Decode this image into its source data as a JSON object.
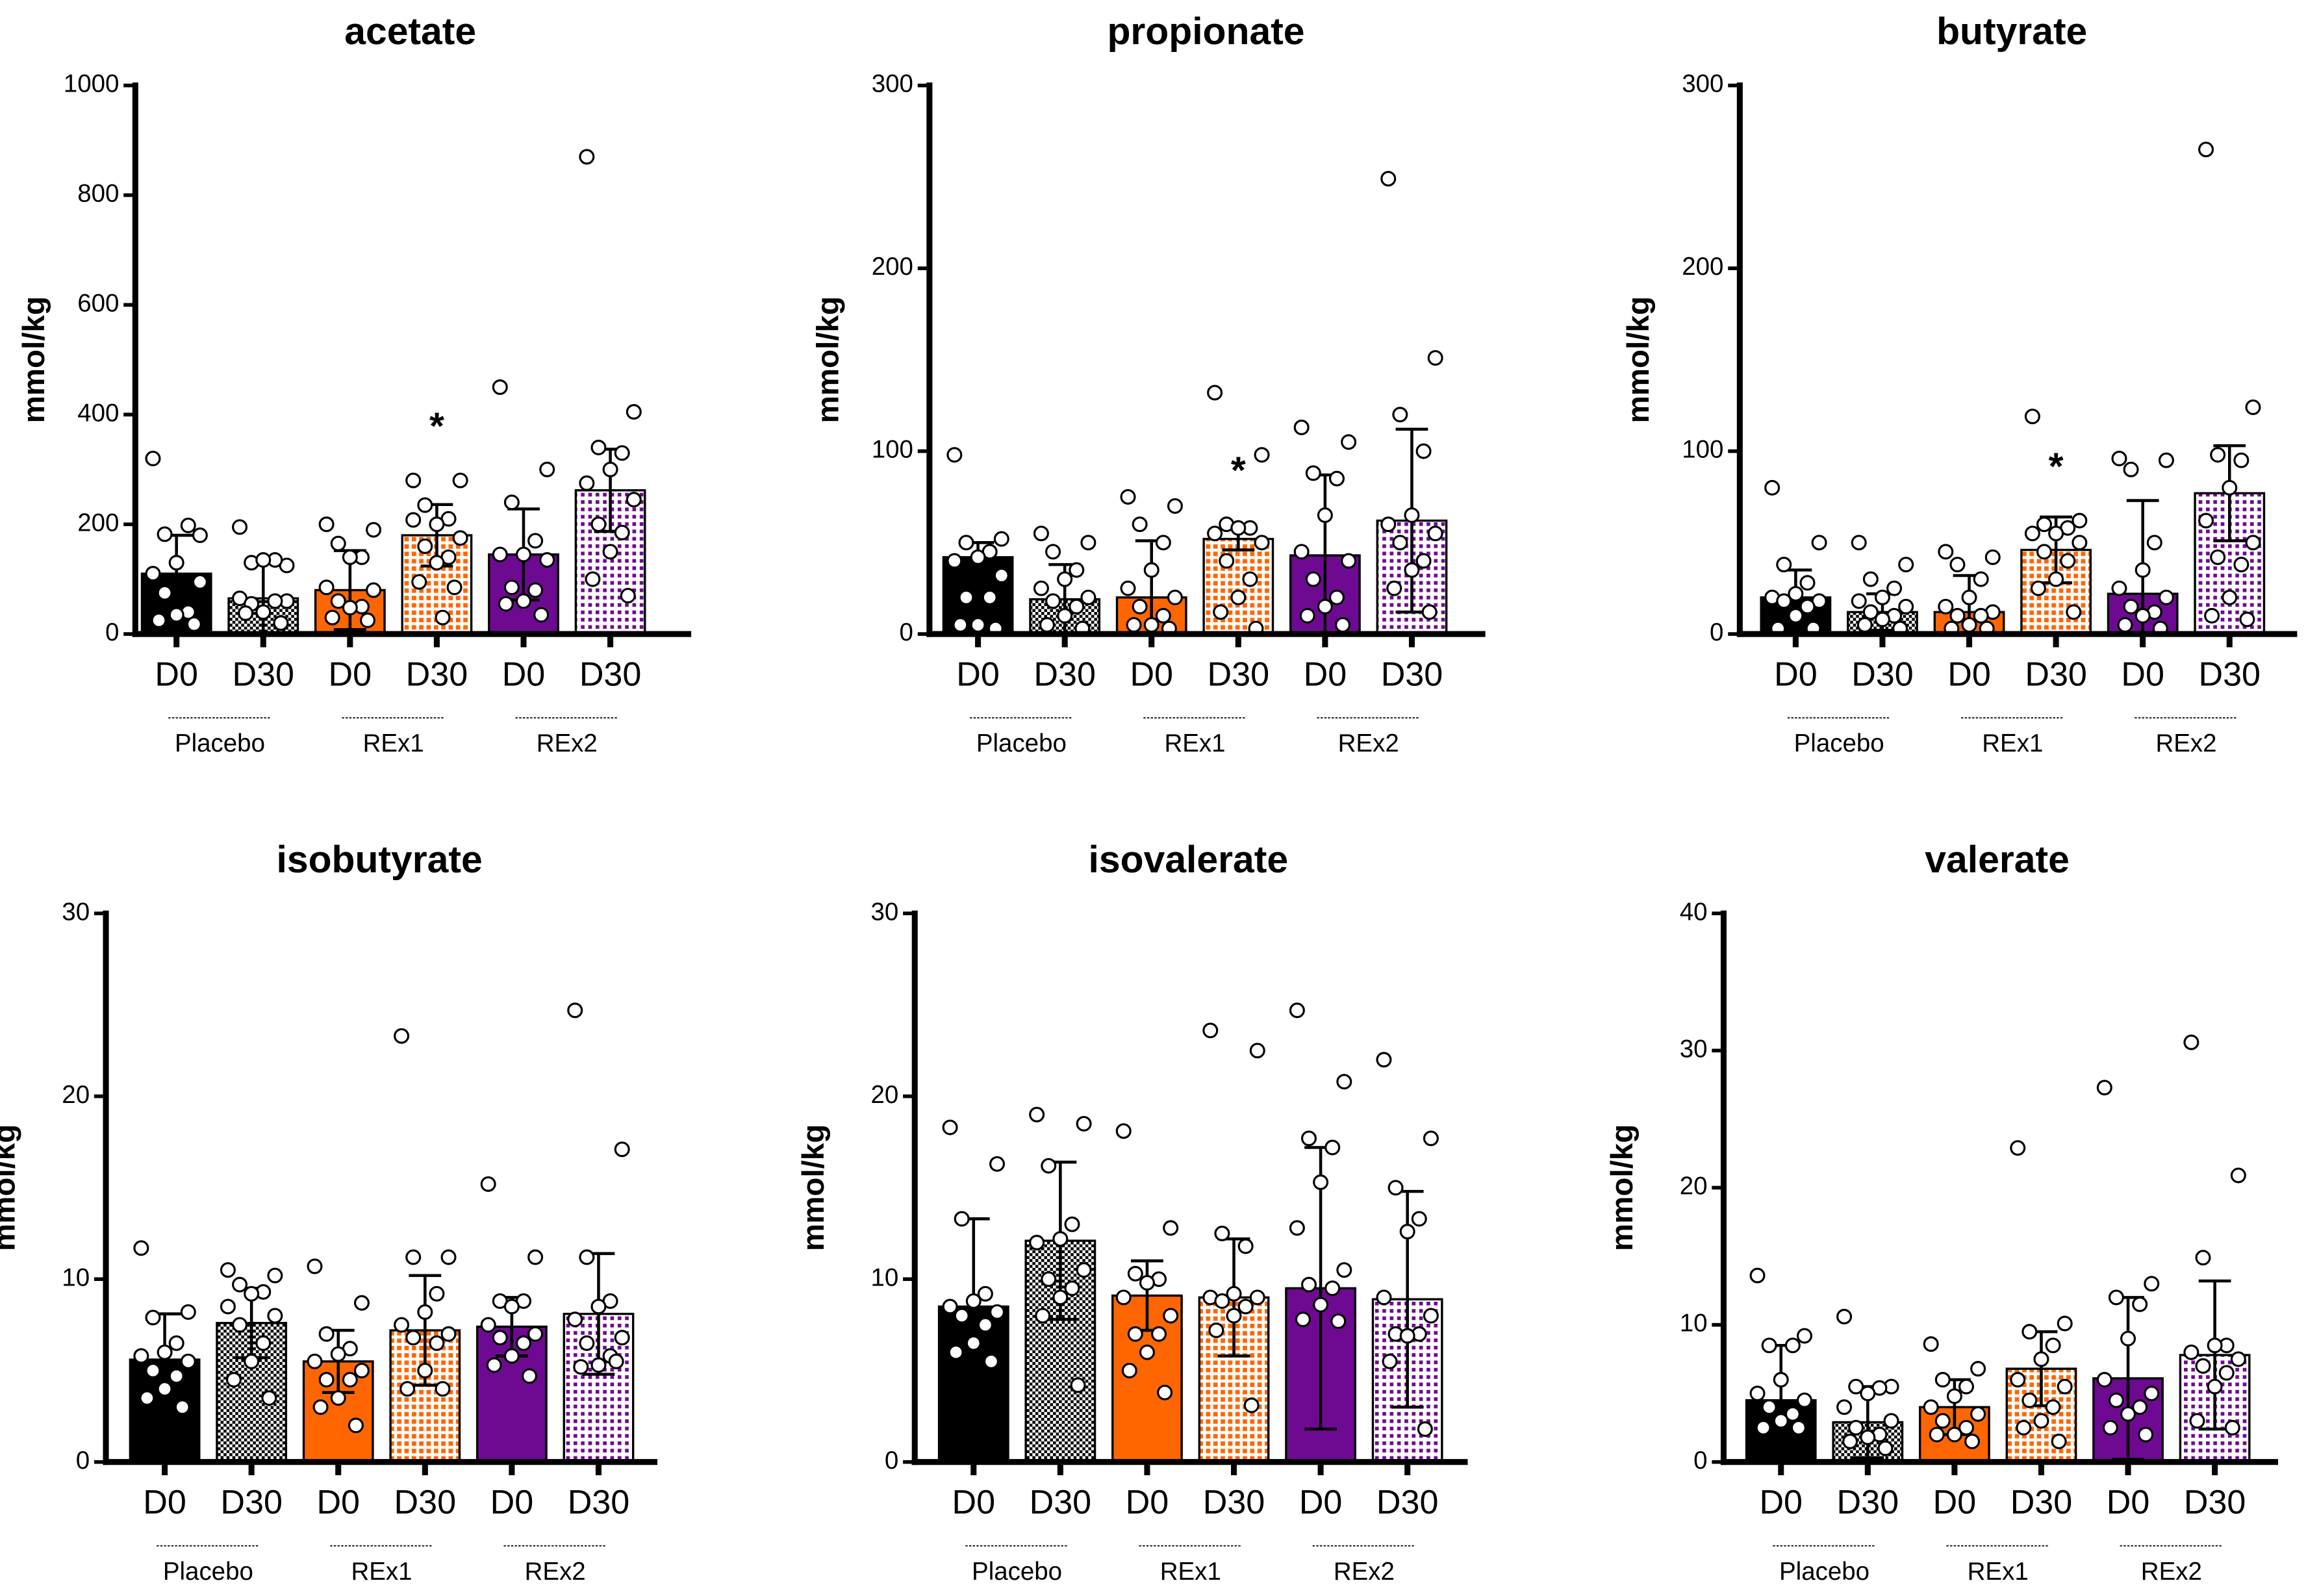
{
  "chart_data": [
    {
      "type": "bar",
      "title": "acetate",
      "ylabel": "mmol/kg",
      "ylim": [
        0,
        1000
      ],
      "yticks": [
        0,
        200,
        400,
        600,
        800,
        1000
      ],
      "categories": [
        "D0",
        "D30",
        "D0",
        "D30",
        "D0",
        "D30"
      ],
      "groups": [
        "Placebo",
        "REx1",
        "REx2"
      ],
      "means": [
        110,
        65,
        80,
        180,
        145,
        262
      ],
      "sd": [
        70,
        70,
        72,
        56,
        83,
        75
      ],
      "significance": [
        "",
        "",
        "",
        "*",
        "",
        ""
      ],
      "points": [
        [
          320,
          180,
          182,
          198,
          130,
          110,
          95,
          75,
          40,
          35,
          25,
          18
        ],
        [
          195,
          125,
          130,
          135,
          135,
          65,
          60,
          55,
          60,
          40,
          38,
          20
        ],
        [
          200,
          190,
          165,
          140,
          140,
          85,
          80,
          60,
          50,
          48,
          30,
          25
        ],
        [
          280,
          280,
          235,
          210,
          200,
          208,
          175,
          160,
          140,
          130,
          95,
          85,
          30
        ],
        [
          450,
          300,
          240,
          170,
          145,
          145,
          135,
          85,
          80,
          60,
          55,
          35
        ],
        [
          870,
          405,
          340,
          330,
          300,
          275,
          245,
          200,
          185,
          150,
          100,
          70
        ]
      ]
    },
    {
      "type": "bar",
      "title": "propionate",
      "ylabel": "mmol/kg",
      "ylim": [
        0,
        300
      ],
      "yticks": [
        0,
        100,
        200,
        300
      ],
      "categories": [
        "D0",
        "D30",
        "D0",
        "D30",
        "D0",
        "D30"
      ],
      "groups": [
        "Placebo",
        "REx1",
        "REx2"
      ],
      "means": [
        42,
        19,
        20,
        52,
        43,
        62
      ],
      "sd": [
        8,
        19,
        31,
        6,
        44,
        50
      ],
      "significance": [
        "",
        "",
        "",
        "*",
        "",
        ""
      ],
      "points": [
        [
          98,
          52,
          50,
          45,
          42,
          40,
          32,
          20,
          20,
          5,
          5,
          3
        ],
        [
          55,
          50,
          45,
          35,
          30,
          25,
          20,
          18,
          15,
          10,
          5,
          3
        ],
        [
          75,
          70,
          60,
          50,
          35,
          25,
          20,
          15,
          10,
          5,
          5,
          3
        ],
        [
          132,
          98,
          60,
          58,
          58,
          55,
          50,
          40,
          30,
          20,
          12,
          3
        ],
        [
          113,
          105,
          88,
          85,
          65,
          45,
          40,
          30,
          20,
          15,
          10,
          5
        ],
        [
          249,
          151,
          120,
          100,
          65,
          60,
          55,
          50,
          40,
          35,
          25,
          12
        ]
      ]
    },
    {
      "type": "bar",
      "title": "butyrate",
      "ylabel": "mmol/kg",
      "ylim": [
        0,
        300
      ],
      "yticks": [
        0,
        100,
        200,
        300
      ],
      "categories": [
        "D0",
        "D30",
        "D0",
        "D30",
        "D0",
        "D30"
      ],
      "groups": [
        "Placebo",
        "REx1",
        "REx2"
      ],
      "means": [
        20,
        12,
        12,
        46,
        22,
        77
      ],
      "sd": [
        15,
        10,
        20,
        18,
        51,
        26
      ],
      "significance": [
        "",
        "",
        "",
        "*",
        "",
        ""
      ],
      "points": [
        [
          80,
          50,
          38,
          28,
          22,
          20,
          18,
          18,
          15,
          10,
          3,
          3
        ],
        [
          50,
          38,
          30,
          25,
          20,
          18,
          15,
          12,
          10,
          8,
          5,
          3
        ],
        [
          45,
          42,
          38,
          30,
          20,
          15,
          12,
          10,
          10,
          5,
          3,
          3
        ],
        [
          119,
          62,
          60,
          58,
          55,
          55,
          50,
          45,
          40,
          30,
          25,
          12
        ],
        [
          96,
          95,
          90,
          50,
          35,
          25,
          20,
          15,
          12,
          10,
          5,
          3
        ],
        [
          265,
          124,
          98,
          95,
          80,
          62,
          50,
          42,
          38,
          20,
          10,
          8
        ]
      ]
    },
    {
      "type": "bar",
      "title": "isobutyrate",
      "ylabel": "mmol/kg",
      "ylim": [
        0,
        30
      ],
      "yticks": [
        0,
        10,
        20,
        30
      ],
      "categories": [
        "D0",
        "D30",
        "D0",
        "D30",
        "D0",
        "D30"
      ],
      "groups": [
        "Placebo",
        "REx1",
        "REx2"
      ],
      "means": [
        5.6,
        7.6,
        5.5,
        7.2,
        7.4,
        8.1
      ],
      "sd": [
        2.5,
        1.9,
        1.7,
        3.0,
        1.6,
        3.3
      ],
      "significance": [
        "",
        "",
        "",
        "",
        "",
        ""
      ],
      "points": [
        [
          11.7,
          8.2,
          7.9,
          6.5,
          6,
          5.8,
          5.5,
          5,
          4.7,
          4,
          3.5,
          3
        ],
        [
          10.5,
          10.2,
          9.7,
          9.3,
          9.2,
          8.5,
          8,
          7.5,
          6.5,
          5.5,
          4.5,
          3.5
        ],
        [
          10.7,
          8.7,
          7,
          6.2,
          5.9,
          5.5,
          5,
          4.5,
          4.5,
          3.5,
          3,
          2
        ],
        [
          23.3,
          11.2,
          11.2,
          9.2,
          8.2,
          7.5,
          7,
          6.8,
          6.5,
          5,
          4,
          4
        ],
        [
          15.2,
          11.2,
          8.8,
          8.8,
          8.5,
          7.5,
          7,
          6.8,
          6.5,
          5.8,
          5.3,
          4.7
        ],
        [
          24.7,
          17.1,
          11.2,
          8.8,
          8.5,
          7.8,
          6.8,
          6.5,
          5.8,
          5.3,
          5.2,
          5.5
        ]
      ]
    },
    {
      "type": "bar",
      "title": "isovalerate",
      "ylabel": "mmol/kg",
      "ylim": [
        0,
        30
      ],
      "yticks": [
        0,
        10,
        20,
        30
      ],
      "categories": [
        "D0",
        "D30",
        "D0",
        "D30",
        "D0",
        "D30"
      ],
      "groups": [
        "Placebo",
        "REx1",
        "REx2"
      ],
      "means": [
        8.5,
        12.1,
        9.1,
        9.0,
        9.5,
        8.9
      ],
      "sd": [
        4.8,
        4.3,
        1.9,
        3.2,
        7.7,
        5.9
      ],
      "significance": [
        "",
        "",
        "",
        "",
        "",
        ""
      ],
      "points": [
        [
          18.3,
          16.3,
          13.3,
          9.2,
          8.8,
          8.5,
          8.2,
          8,
          7.5,
          6.5,
          6,
          5.5
        ],
        [
          19,
          18.5,
          16.2,
          13,
          12.2,
          12,
          10.5,
          10,
          9.5,
          9,
          8,
          4.2
        ],
        [
          18.1,
          12.8,
          10.3,
          10,
          9.8,
          9,
          8,
          7,
          7,
          6,
          5,
          3.8
        ],
        [
          23.6,
          22.5,
          12.5,
          11.8,
          9.2,
          9,
          9,
          8.8,
          8.5,
          8,
          7.2,
          3.1
        ],
        [
          24.7,
          20.8,
          17.7,
          17.2,
          15.3,
          12.8,
          10.5,
          9.7,
          9.5,
          8.6,
          7.8,
          7.7
        ],
        [
          22,
          17.7,
          15,
          13.3,
          12.6,
          9,
          8,
          7,
          7,
          6.9,
          5.5,
          1.8
        ]
      ]
    },
    {
      "type": "bar",
      "title": "valerate",
      "ylabel": "mmol/kg",
      "ylim": [
        0,
        40
      ],
      "yticks": [
        0,
        10,
        20,
        30,
        40
      ],
      "categories": [
        "D0",
        "D30",
        "D0",
        "D30",
        "D0",
        "D30"
      ],
      "groups": [
        "Placebo",
        "REx1",
        "REx2"
      ],
      "means": [
        4.5,
        2.9,
        4.0,
        6.8,
        6.1,
        7.8
      ],
      "sd": [
        4.0,
        2.6,
        2.0,
        2.7,
        5.9,
        5.4
      ],
      "significance": [
        "",
        "",
        "",
        "",
        "",
        ""
      ],
      "points": [
        [
          13.6,
          9.2,
          8.5,
          8.5,
          6,
          5,
          4.5,
          4,
          3.5,
          3,
          2.5,
          2.5
        ],
        [
          10.6,
          5.5,
          5.5,
          5.4,
          5,
          4,
          3,
          2.5,
          2,
          1.8,
          1.5,
          1
        ],
        [
          8.6,
          6.8,
          6,
          5.5,
          4.8,
          4,
          3.5,
          3,
          2.5,
          2,
          2,
          1.5
        ],
        [
          22.9,
          10.1,
          9.5,
          8.5,
          7.5,
          6,
          5.5,
          4.5,
          4,
          3,
          2.5,
          1.5
        ],
        [
          27.3,
          13,
          12,
          11.5,
          9,
          6,
          5,
          4.5,
          4,
          3.5,
          2.5,
          2
        ],
        [
          30.6,
          20.9,
          14.9,
          8.5,
          8.5,
          8,
          7.5,
          7,
          6.5,
          5.5,
          3,
          2.5
        ]
      ]
    }
  ],
  "colors": {
    "placebo": "#000000",
    "rex1": "#ff6600",
    "rex2": "#6e0a91"
  }
}
